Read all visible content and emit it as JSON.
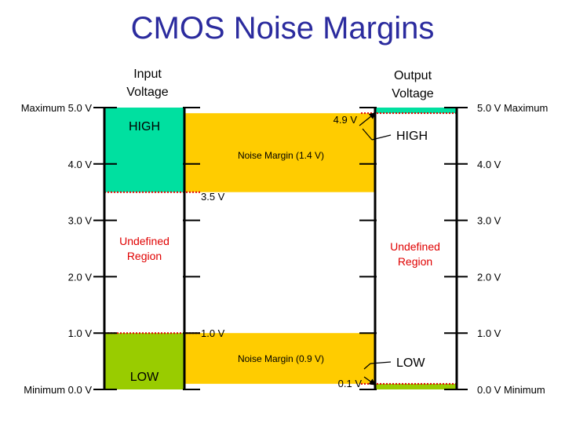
{
  "title": "CMOS Noise Margins",
  "colors": {
    "high": "#00e0a0",
    "low": "#99cc00",
    "margin": "#ffcc00",
    "undefined_text": "#e00000",
    "threshold_line": "#e00000",
    "axis": "#000000",
    "title": "#2b2b9e"
  },
  "input": {
    "heading_line1": "Input",
    "heading_line2": "Voltage",
    "high_label": "HIGH",
    "low_label": "LOW",
    "undefined_line1": "Undefined",
    "undefined_line2": "Region",
    "high_threshold_v": 3.5,
    "low_threshold_v": 1.0,
    "high_threshold_label": "3.5 V",
    "low_threshold_label": "1.0 V",
    "ticks": [
      {
        "v": 5.0,
        "label": "Maximum 5.0 V"
      },
      {
        "v": 4.0,
        "label": "4.0 V"
      },
      {
        "v": 3.0,
        "label": "3.0 V"
      },
      {
        "v": 2.0,
        "label": "2.0 V"
      },
      {
        "v": 1.0,
        "label": "1.0 V"
      },
      {
        "v": 0.0,
        "label": "Minimum 0.0 V"
      }
    ]
  },
  "output": {
    "heading_line1": "Output",
    "heading_line2": "Voltage",
    "high_label": "HIGH",
    "low_label": "LOW",
    "undefined_line1": "Undefined",
    "undefined_line2": "Region",
    "high_threshold_v": 4.9,
    "low_threshold_v": 0.1,
    "high_threshold_label": "4.9 V",
    "low_threshold_label": "0.1 V",
    "ticks": [
      {
        "v": 5.0,
        "label": "5.0 V Maximum"
      },
      {
        "v": 4.0,
        "label": "4.0 V"
      },
      {
        "v": 3.0,
        "label": "3.0 V"
      },
      {
        "v": 2.0,
        "label": "2.0 V"
      },
      {
        "v": 1.0,
        "label": "1.0 V"
      },
      {
        "v": 0.0,
        "label": "0.0 V Minimum"
      }
    ]
  },
  "noise_margins": {
    "high_label": "Noise Margin  (1.4 V)",
    "low_label": "Noise Margin  (0.9 V)"
  }
}
